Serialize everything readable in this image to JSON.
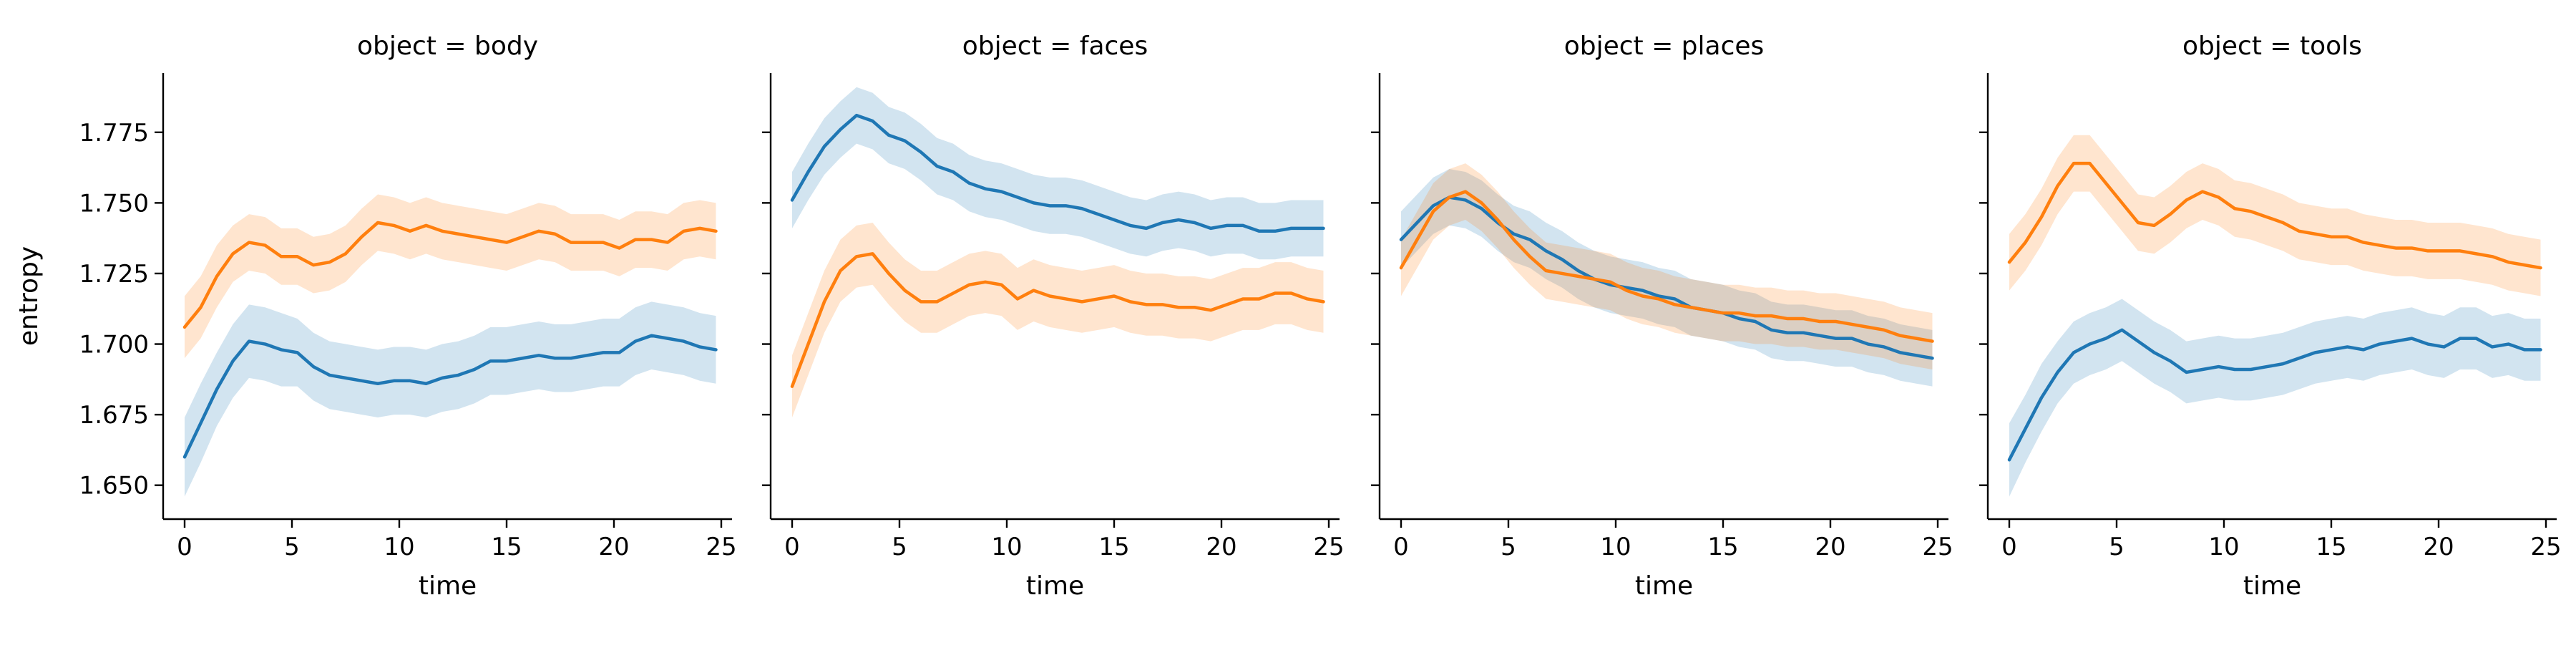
{
  "chart_data": {
    "type": "line",
    "ylabel": "entropy",
    "xlabel": "time",
    "xlim": [
      -1,
      25.5
    ],
    "ylim": [
      1.638,
      1.796
    ],
    "x_ticks": [
      0,
      5,
      10,
      15,
      20,
      25
    ],
    "x_tick_labels": [
      "0",
      "5",
      "10",
      "15",
      "20",
      "25"
    ],
    "y_ticks": [
      1.65,
      1.675,
      1.7,
      1.725,
      1.75,
      1.775
    ],
    "y_tick_labels": [
      "1.650",
      "1.675",
      "1.700",
      "1.725",
      "1.750",
      "1.775"
    ],
    "series_colors": [
      "#1f77b4",
      "#ff7f0e"
    ],
    "band_opacity": 0.2,
    "x": [
      0,
      0.75,
      1.5,
      2.25,
      3,
      3.75,
      4.5,
      5.25,
      6,
      6.75,
      7.5,
      8.25,
      9,
      9.75,
      10.5,
      11.25,
      12,
      12.75,
      13.5,
      14.25,
      15,
      15.75,
      16.5,
      17.25,
      18,
      18.75,
      19.5,
      20.25,
      21,
      21.75,
      22.5,
      23.25,
      24,
      24.75
    ],
    "panels": [
      {
        "title": "object = body",
        "series": [
          {
            "values": [
              1.66,
              1.672,
              1.684,
              1.694,
              1.701,
              1.7,
              1.698,
              1.697,
              1.692,
              1.689,
              1.688,
              1.687,
              1.686,
              1.687,
              1.687,
              1.686,
              1.688,
              1.689,
              1.691,
              1.694,
              1.694,
              1.695,
              1.696,
              1.695,
              1.695,
              1.696,
              1.697,
              1.697,
              1.701,
              1.703,
              1.702,
              1.701,
              1.699,
              1.698
            ],
            "err": [
              0.014,
              0.014,
              0.013,
              0.013,
              0.013,
              0.013,
              0.013,
              0.012,
              0.012,
              0.012,
              0.012,
              0.012,
              0.012,
              0.012,
              0.012,
              0.012,
              0.012,
              0.012,
              0.012,
              0.012,
              0.012,
              0.012,
              0.012,
              0.012,
              0.012,
              0.012,
              0.012,
              0.012,
              0.012,
              0.012,
              0.012,
              0.012,
              0.012,
              0.012
            ]
          },
          {
            "values": [
              1.706,
              1.713,
              1.724,
              1.732,
              1.736,
              1.735,
              1.731,
              1.731,
              1.728,
              1.729,
              1.732,
              1.738,
              1.743,
              1.742,
              1.74,
              1.742,
              1.74,
              1.739,
              1.738,
              1.737,
              1.736,
              1.738,
              1.74,
              1.739,
              1.736,
              1.736,
              1.736,
              1.734,
              1.737,
              1.737,
              1.736,
              1.74,
              1.741,
              1.74
            ],
            "err": [
              0.011,
              0.011,
              0.011,
              0.01,
              0.01,
              0.01,
              0.01,
              0.01,
              0.01,
              0.01,
              0.01,
              0.01,
              0.01,
              0.01,
              0.01,
              0.01,
              0.01,
              0.01,
              0.01,
              0.01,
              0.01,
              0.01,
              0.01,
              0.01,
              0.01,
              0.01,
              0.01,
              0.01,
              0.01,
              0.01,
              0.01,
              0.01,
              0.01,
              0.01
            ]
          }
        ]
      },
      {
        "title": "object = faces",
        "series": [
          {
            "values": [
              1.751,
              1.761,
              1.77,
              1.776,
              1.781,
              1.779,
              1.774,
              1.772,
              1.768,
              1.763,
              1.761,
              1.757,
              1.755,
              1.754,
              1.752,
              1.75,
              1.749,
              1.749,
              1.748,
              1.746,
              1.744,
              1.742,
              1.741,
              1.743,
              1.744,
              1.743,
              1.741,
              1.742,
              1.742,
              1.74,
              1.74,
              1.741,
              1.741,
              1.741
            ],
            "err": [
              0.01,
              0.01,
              0.01,
              0.01,
              0.01,
              0.01,
              0.01,
              0.01,
              0.01,
              0.01,
              0.01,
              0.01,
              0.01,
              0.01,
              0.01,
              0.01,
              0.01,
              0.01,
              0.01,
              0.01,
              0.01,
              0.01,
              0.01,
              0.01,
              0.01,
              0.01,
              0.01,
              0.01,
              0.01,
              0.01,
              0.01,
              0.01,
              0.01,
              0.01
            ]
          },
          {
            "values": [
              1.685,
              1.7,
              1.715,
              1.726,
              1.731,
              1.732,
              1.725,
              1.719,
              1.715,
              1.715,
              1.718,
              1.721,
              1.722,
              1.721,
              1.716,
              1.719,
              1.717,
              1.716,
              1.715,
              1.716,
              1.717,
              1.715,
              1.714,
              1.714,
              1.713,
              1.713,
              1.712,
              1.714,
              1.716,
              1.716,
              1.718,
              1.718,
              1.716,
              1.715
            ],
            "err": [
              0.011,
              0.011,
              0.011,
              0.011,
              0.011,
              0.011,
              0.011,
              0.011,
              0.011,
              0.011,
              0.011,
              0.011,
              0.011,
              0.011,
              0.011,
              0.011,
              0.011,
              0.011,
              0.011,
              0.011,
              0.011,
              0.011,
              0.011,
              0.011,
              0.011,
              0.011,
              0.011,
              0.011,
              0.011,
              0.011,
              0.011,
              0.011,
              0.011,
              0.011
            ]
          }
        ]
      },
      {
        "title": "object = places",
        "series": [
          {
            "values": [
              1.737,
              1.743,
              1.749,
              1.752,
              1.751,
              1.748,
              1.743,
              1.739,
              1.737,
              1.733,
              1.73,
              1.726,
              1.723,
              1.721,
              1.72,
              1.719,
              1.717,
              1.716,
              1.713,
              1.712,
              1.711,
              1.709,
              1.708,
              1.705,
              1.704,
              1.704,
              1.703,
              1.702,
              1.702,
              1.7,
              1.699,
              1.697,
              1.696,
              1.695
            ],
            "err": [
              0.01,
              0.01,
              0.01,
              0.01,
              0.01,
              0.01,
              0.01,
              0.01,
              0.01,
              0.01,
              0.01,
              0.01,
              0.01,
              0.01,
              0.01,
              0.01,
              0.01,
              0.01,
              0.01,
              0.01,
              0.01,
              0.01,
              0.01,
              0.01,
              0.01,
              0.01,
              0.01,
              0.01,
              0.01,
              0.01,
              0.01,
              0.01,
              0.01,
              0.01
            ]
          },
          {
            "values": [
              1.727,
              1.737,
              1.747,
              1.752,
              1.754,
              1.75,
              1.744,
              1.737,
              1.731,
              1.726,
              1.725,
              1.724,
              1.723,
              1.722,
              1.719,
              1.717,
              1.716,
              1.714,
              1.713,
              1.712,
              1.711,
              1.711,
              1.71,
              1.71,
              1.709,
              1.709,
              1.708,
              1.708,
              1.707,
              1.706,
              1.705,
              1.703,
              1.702,
              1.701
            ],
            "err": [
              0.01,
              0.01,
              0.01,
              0.01,
              0.01,
              0.01,
              0.01,
              0.01,
              0.01,
              0.01,
              0.01,
              0.01,
              0.01,
              0.01,
              0.01,
              0.01,
              0.01,
              0.01,
              0.01,
              0.01,
              0.01,
              0.01,
              0.01,
              0.01,
              0.01,
              0.01,
              0.01,
              0.01,
              0.01,
              0.01,
              0.01,
              0.01,
              0.01,
              0.01
            ]
          }
        ]
      },
      {
        "title": "object = tools",
        "series": [
          {
            "values": [
              1.659,
              1.67,
              1.681,
              1.69,
              1.697,
              1.7,
              1.702,
              1.705,
              1.701,
              1.697,
              1.694,
              1.69,
              1.691,
              1.692,
              1.691,
              1.691,
              1.692,
              1.693,
              1.695,
              1.697,
              1.698,
              1.699,
              1.698,
              1.7,
              1.701,
              1.702,
              1.7,
              1.699,
              1.702,
              1.702,
              1.699,
              1.7,
              1.698,
              1.698
            ],
            "err": [
              0.013,
              0.012,
              0.012,
              0.011,
              0.011,
              0.011,
              0.011,
              0.011,
              0.011,
              0.011,
              0.011,
              0.011,
              0.011,
              0.011,
              0.011,
              0.011,
              0.011,
              0.011,
              0.011,
              0.011,
              0.011,
              0.011,
              0.011,
              0.011,
              0.011,
              0.011,
              0.011,
              0.011,
              0.011,
              0.011,
              0.011,
              0.011,
              0.011,
              0.011
            ]
          },
          {
            "values": [
              1.729,
              1.736,
              1.745,
              1.756,
              1.764,
              1.764,
              1.757,
              1.75,
              1.743,
              1.742,
              1.746,
              1.751,
              1.754,
              1.752,
              1.748,
              1.747,
              1.745,
              1.743,
              1.74,
              1.739,
              1.738,
              1.738,
              1.736,
              1.735,
              1.734,
              1.734,
              1.733,
              1.733,
              1.733,
              1.732,
              1.731,
              1.729,
              1.728,
              1.727
            ],
            "err": [
              0.01,
              0.01,
              0.01,
              0.01,
              0.01,
              0.01,
              0.01,
              0.01,
              0.01,
              0.01,
              0.01,
              0.01,
              0.01,
              0.01,
              0.01,
              0.01,
              0.01,
              0.01,
              0.01,
              0.01,
              0.01,
              0.01,
              0.01,
              0.01,
              0.01,
              0.01,
              0.01,
              0.01,
              0.01,
              0.01,
              0.01,
              0.01,
              0.01,
              0.01
            ]
          }
        ]
      }
    ]
  }
}
